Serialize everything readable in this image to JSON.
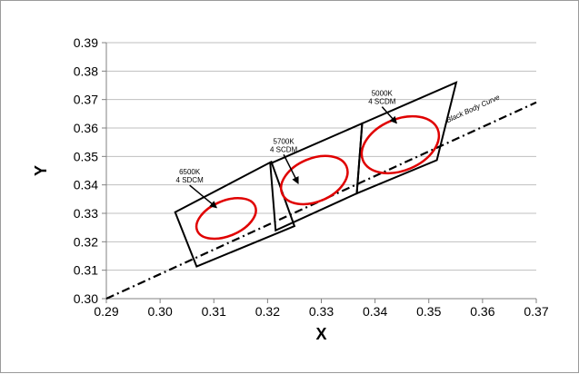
{
  "chart_data": {
    "type": "scatter",
    "xlabel": "X",
    "ylabel": "Y",
    "xlim": [
      0.29,
      0.37
    ],
    "ylim": [
      0.3,
      0.39
    ],
    "xticks": [
      "0.29",
      "0.30",
      "0.31",
      "0.32",
      "0.33",
      "0.34",
      "0.35",
      "0.36",
      "0.37"
    ],
    "yticks": [
      "0.30",
      "0.31",
      "0.32",
      "0.33",
      "0.34",
      "0.35",
      "0.36",
      "0.37",
      "0.38",
      "0.39"
    ],
    "grid": "horizontal",
    "colors": {
      "boxes": "#000000",
      "ellipses": "#e00000",
      "curve": "#000000",
      "grid": "#bfbfbf"
    },
    "black_body_curve": {
      "label": "Black Body Curve",
      "style": "dash-dot",
      "points": [
        [
          0.29,
          0.3
        ],
        [
          0.37,
          0.369
        ]
      ]
    },
    "regions": [
      {
        "label_line1": "6500K",
        "label_line2": "4 SDCM",
        "quadrilateral": [
          [
            0.3028,
            0.3304
          ],
          [
            0.3207,
            0.3481
          ],
          [
            0.325,
            0.3255
          ],
          [
            0.3068,
            0.3113
          ]
        ],
        "ellipse": {
          "center": [
            0.3123,
            0.3282
          ],
          "semi_x": 0.0045,
          "semi_y": 0.0065
        },
        "arrow_from": [
          0.3055,
          0.3405
        ],
        "arrow_to": [
          0.3105,
          0.332
        ]
      },
      {
        "label_line1": "5700K",
        "label_line2": "4 SCDM",
        "quadrilateral": [
          [
            0.3205,
            0.3475
          ],
          [
            0.3376,
            0.3616
          ],
          [
            0.3366,
            0.337
          ],
          [
            0.3215,
            0.324
          ]
        ],
        "ellipse": {
          "center": [
            0.3287,
            0.3417
          ],
          "semi_x": 0.005,
          "semi_y": 0.008
        },
        "arrow_from": [
          0.323,
          0.3513
        ],
        "arrow_to": [
          0.3257,
          0.3405
        ]
      },
      {
        "label_line1": "5000K",
        "label_line2": "4 SCDM",
        "quadrilateral": [
          [
            0.3376,
            0.3616
          ],
          [
            0.3551,
            0.376
          ],
          [
            0.3515,
            0.3487
          ],
          [
            0.3366,
            0.337
          ]
        ],
        "ellipse": {
          "center": [
            0.3447,
            0.3541
          ],
          "semi_x": 0.0058,
          "semi_y": 0.0095
        },
        "arrow_from": [
          0.3413,
          0.3681
        ],
        "arrow_to": [
          0.344,
          0.3617
        ]
      }
    ]
  }
}
